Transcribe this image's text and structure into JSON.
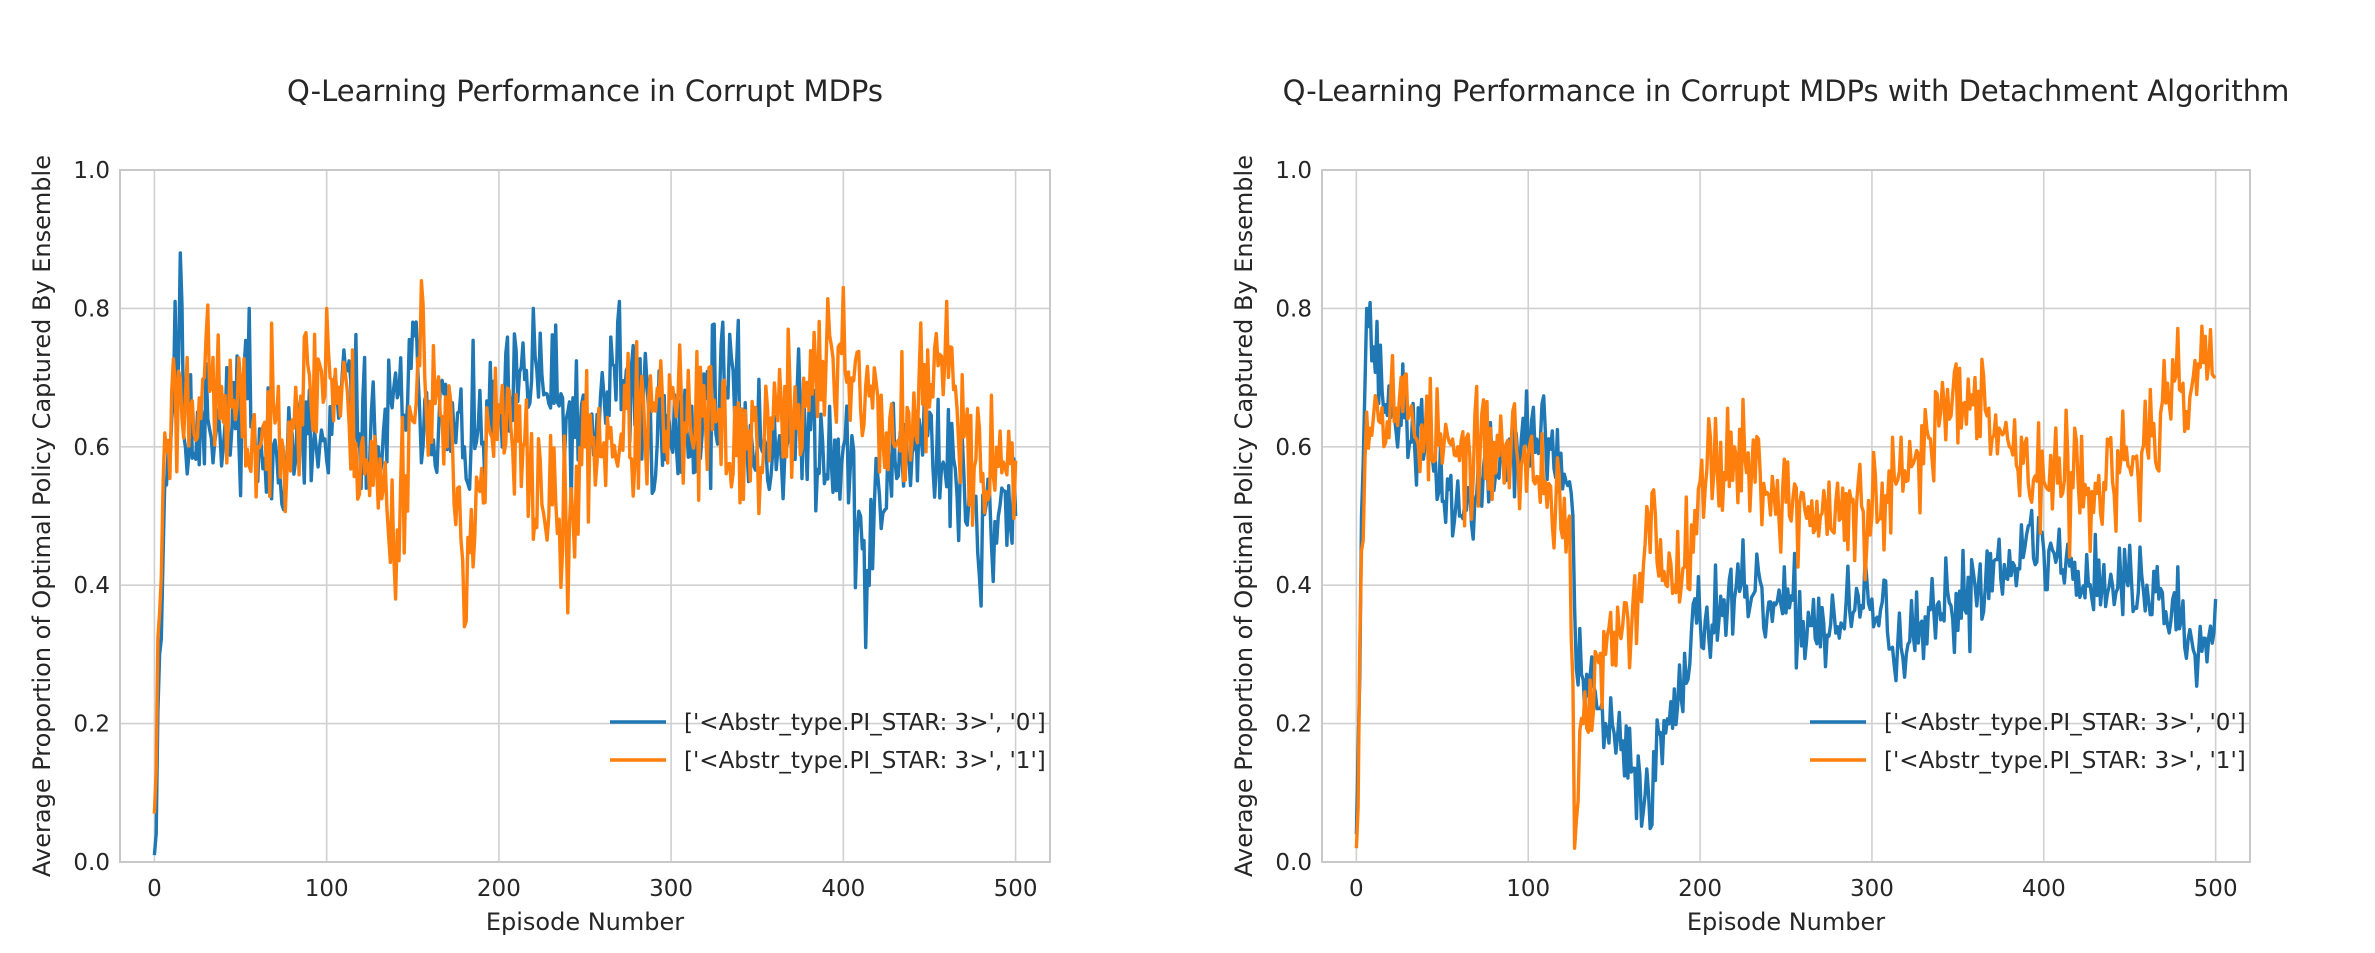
{
  "chart_data": [
    {
      "type": "line",
      "title": "Q-Learning Performance in Corrupt MDPs",
      "xlabel": "Episode Number",
      "ylabel": "Average Proportion of Optimal Policy Captured By Ensemble",
      "xlim": [
        -20,
        520
      ],
      "ylim": [
        0,
        1
      ],
      "xticks": [
        0,
        100,
        200,
        300,
        400,
        500
      ],
      "yticks": [
        0.0,
        0.2,
        0.4,
        0.6,
        0.8,
        1.0
      ],
      "xtick_labels": [
        "0",
        "100",
        "200",
        "300",
        "400",
        "500"
      ],
      "ytick_labels": [
        "0.0",
        "0.2",
        "0.4",
        "0.6",
        "0.8",
        "1.0"
      ],
      "grid": true,
      "legend_position": "lower-right",
      "series": [
        {
          "name": "['<Abstr_type.PI_STAR: 3>', '0']",
          "color": "#1f77b4",
          "keypoints": [
            [
              0,
              0.01
            ],
            [
              3,
              0.3
            ],
            [
              6,
              0.55
            ],
            [
              10,
              0.64
            ],
            [
              12,
              0.81
            ],
            [
              15,
              0.88
            ],
            [
              18,
              0.6
            ],
            [
              25,
              0.65
            ],
            [
              30,
              0.72
            ],
            [
              40,
              0.6
            ],
            [
              55,
              0.8
            ],
            [
              60,
              0.55
            ],
            [
              80,
              0.62
            ],
            [
              100,
              0.58
            ],
            [
              110,
              0.74
            ],
            [
              130,
              0.6
            ],
            [
              150,
              0.78
            ],
            [
              180,
              0.6
            ],
            [
              200,
              0.66
            ],
            [
              220,
              0.8
            ],
            [
              250,
              0.6
            ],
            [
              270,
              0.81
            ],
            [
              300,
              0.6
            ],
            [
              330,
              0.78
            ],
            [
              350,
              0.6
            ],
            [
              380,
              0.65
            ],
            [
              400,
              0.6
            ],
            [
              413,
              0.31
            ],
            [
              430,
              0.58
            ],
            [
              450,
              0.65
            ],
            [
              480,
              0.37
            ],
            [
              500,
              0.5
            ]
          ],
          "baseline": 0.595,
          "noise": 0.09,
          "seed": 11
        },
        {
          "name": "['<Abstr_type.PI_STAR: 3>', '1']",
          "color": "#ff7f0e",
          "keypoints": [
            [
              0,
              0.07
            ],
            [
              3,
              0.36
            ],
            [
              6,
              0.62
            ],
            [
              10,
              0.68
            ],
            [
              15,
              0.7
            ],
            [
              30,
              0.76
            ],
            [
              60,
              0.6
            ],
            [
              100,
              0.8
            ],
            [
              120,
              0.6
            ],
            [
              140,
              0.38
            ],
            [
              155,
              0.84
            ],
            [
              170,
              0.6
            ],
            [
              180,
              0.34
            ],
            [
              200,
              0.66
            ],
            [
              240,
              0.36
            ],
            [
              250,
              0.6
            ],
            [
              300,
              0.67
            ],
            [
              350,
              0.6
            ],
            [
              400,
              0.83
            ],
            [
              430,
              0.6
            ],
            [
              460,
              0.81
            ],
            [
              480,
              0.55
            ],
            [
              500,
              0.58
            ]
          ],
          "baseline": 0.61,
          "noise": 0.095,
          "seed": 23
        }
      ]
    },
    {
      "type": "line",
      "title": "Q-Learning Performance in Corrupt MDPs with Detachment Algorithm",
      "xlabel": "Episode Number",
      "ylabel": "Average Proportion of Optimal Policy Captured By Ensemble",
      "xlim": [
        -20,
        520
      ],
      "ylim": [
        0,
        1
      ],
      "xticks": [
        0,
        100,
        200,
        300,
        400,
        500
      ],
      "yticks": [
        0.0,
        0.2,
        0.4,
        0.6,
        0.8,
        1.0
      ],
      "xtick_labels": [
        "0",
        "100",
        "200",
        "300",
        "400",
        "500"
      ],
      "ytick_labels": [
        "0.0",
        "0.2",
        "0.4",
        "0.6",
        "0.8",
        "1.0"
      ],
      "grid": true,
      "legend_position": "lower-right",
      "series": [
        {
          "name": "['<Abstr_type.PI_STAR: 3>', '0']",
          "color": "#1f77b4",
          "keypoints": [
            [
              0,
              0.04
            ],
            [
              3,
              0.5
            ],
            [
              6,
              0.8
            ],
            [
              15,
              0.68
            ],
            [
              40,
              0.6
            ],
            [
              60,
              0.5
            ],
            [
              90,
              0.6
            ],
            [
              110,
              0.62
            ],
            [
              122,
              0.55
            ],
            [
              126,
              0.5
            ],
            [
              128,
              0.28
            ],
            [
              135,
              0.24
            ],
            [
              145,
              0.2
            ],
            [
              160,
              0.13
            ],
            [
              170,
              0.1
            ],
            [
              185,
              0.25
            ],
            [
              200,
              0.35
            ],
            [
              220,
              0.38
            ],
            [
              250,
              0.36
            ],
            [
              280,
              0.34
            ],
            [
              300,
              0.38
            ],
            [
              320,
              0.3
            ],
            [
              340,
              0.35
            ],
            [
              360,
              0.4
            ],
            [
              380,
              0.45
            ],
            [
              400,
              0.45
            ],
            [
              420,
              0.42
            ],
            [
              440,
              0.4
            ],
            [
              460,
              0.4
            ],
            [
              480,
              0.35
            ],
            [
              490,
              0.3
            ],
            [
              500,
              0.38
            ]
          ],
          "baseline": null,
          "noise": 0.06,
          "seed": 37
        },
        {
          "name": "['<Abstr_type.PI_STAR: 3>', '1']",
          "color": "#ff7f0e",
          "keypoints": [
            [
              0,
              0.02
            ],
            [
              3,
              0.45
            ],
            [
              6,
              0.65
            ],
            [
              20,
              0.68
            ],
            [
              40,
              0.62
            ],
            [
              60,
              0.58
            ],
            [
              90,
              0.6
            ],
            [
              110,
              0.55
            ],
            [
              124,
              0.5
            ],
            [
              127,
              0.02
            ],
            [
              132,
              0.2
            ],
            [
              145,
              0.3
            ],
            [
              160,
              0.33
            ],
            [
              170,
              0.5
            ],
            [
              185,
              0.4
            ],
            [
              200,
              0.55
            ],
            [
              220,
              0.6
            ],
            [
              250,
              0.52
            ],
            [
              270,
              0.5
            ],
            [
              300,
              0.5
            ],
            [
              320,
              0.55
            ],
            [
              340,
              0.65
            ],
            [
              360,
              0.7
            ],
            [
              380,
              0.6
            ],
            [
              400,
              0.55
            ],
            [
              420,
              0.55
            ],
            [
              440,
              0.55
            ],
            [
              460,
              0.6
            ],
            [
              480,
              0.68
            ],
            [
              490,
              0.72
            ],
            [
              500,
              0.7
            ]
          ],
          "baseline": null,
          "noise": 0.07,
          "seed": 53
        }
      ]
    }
  ]
}
